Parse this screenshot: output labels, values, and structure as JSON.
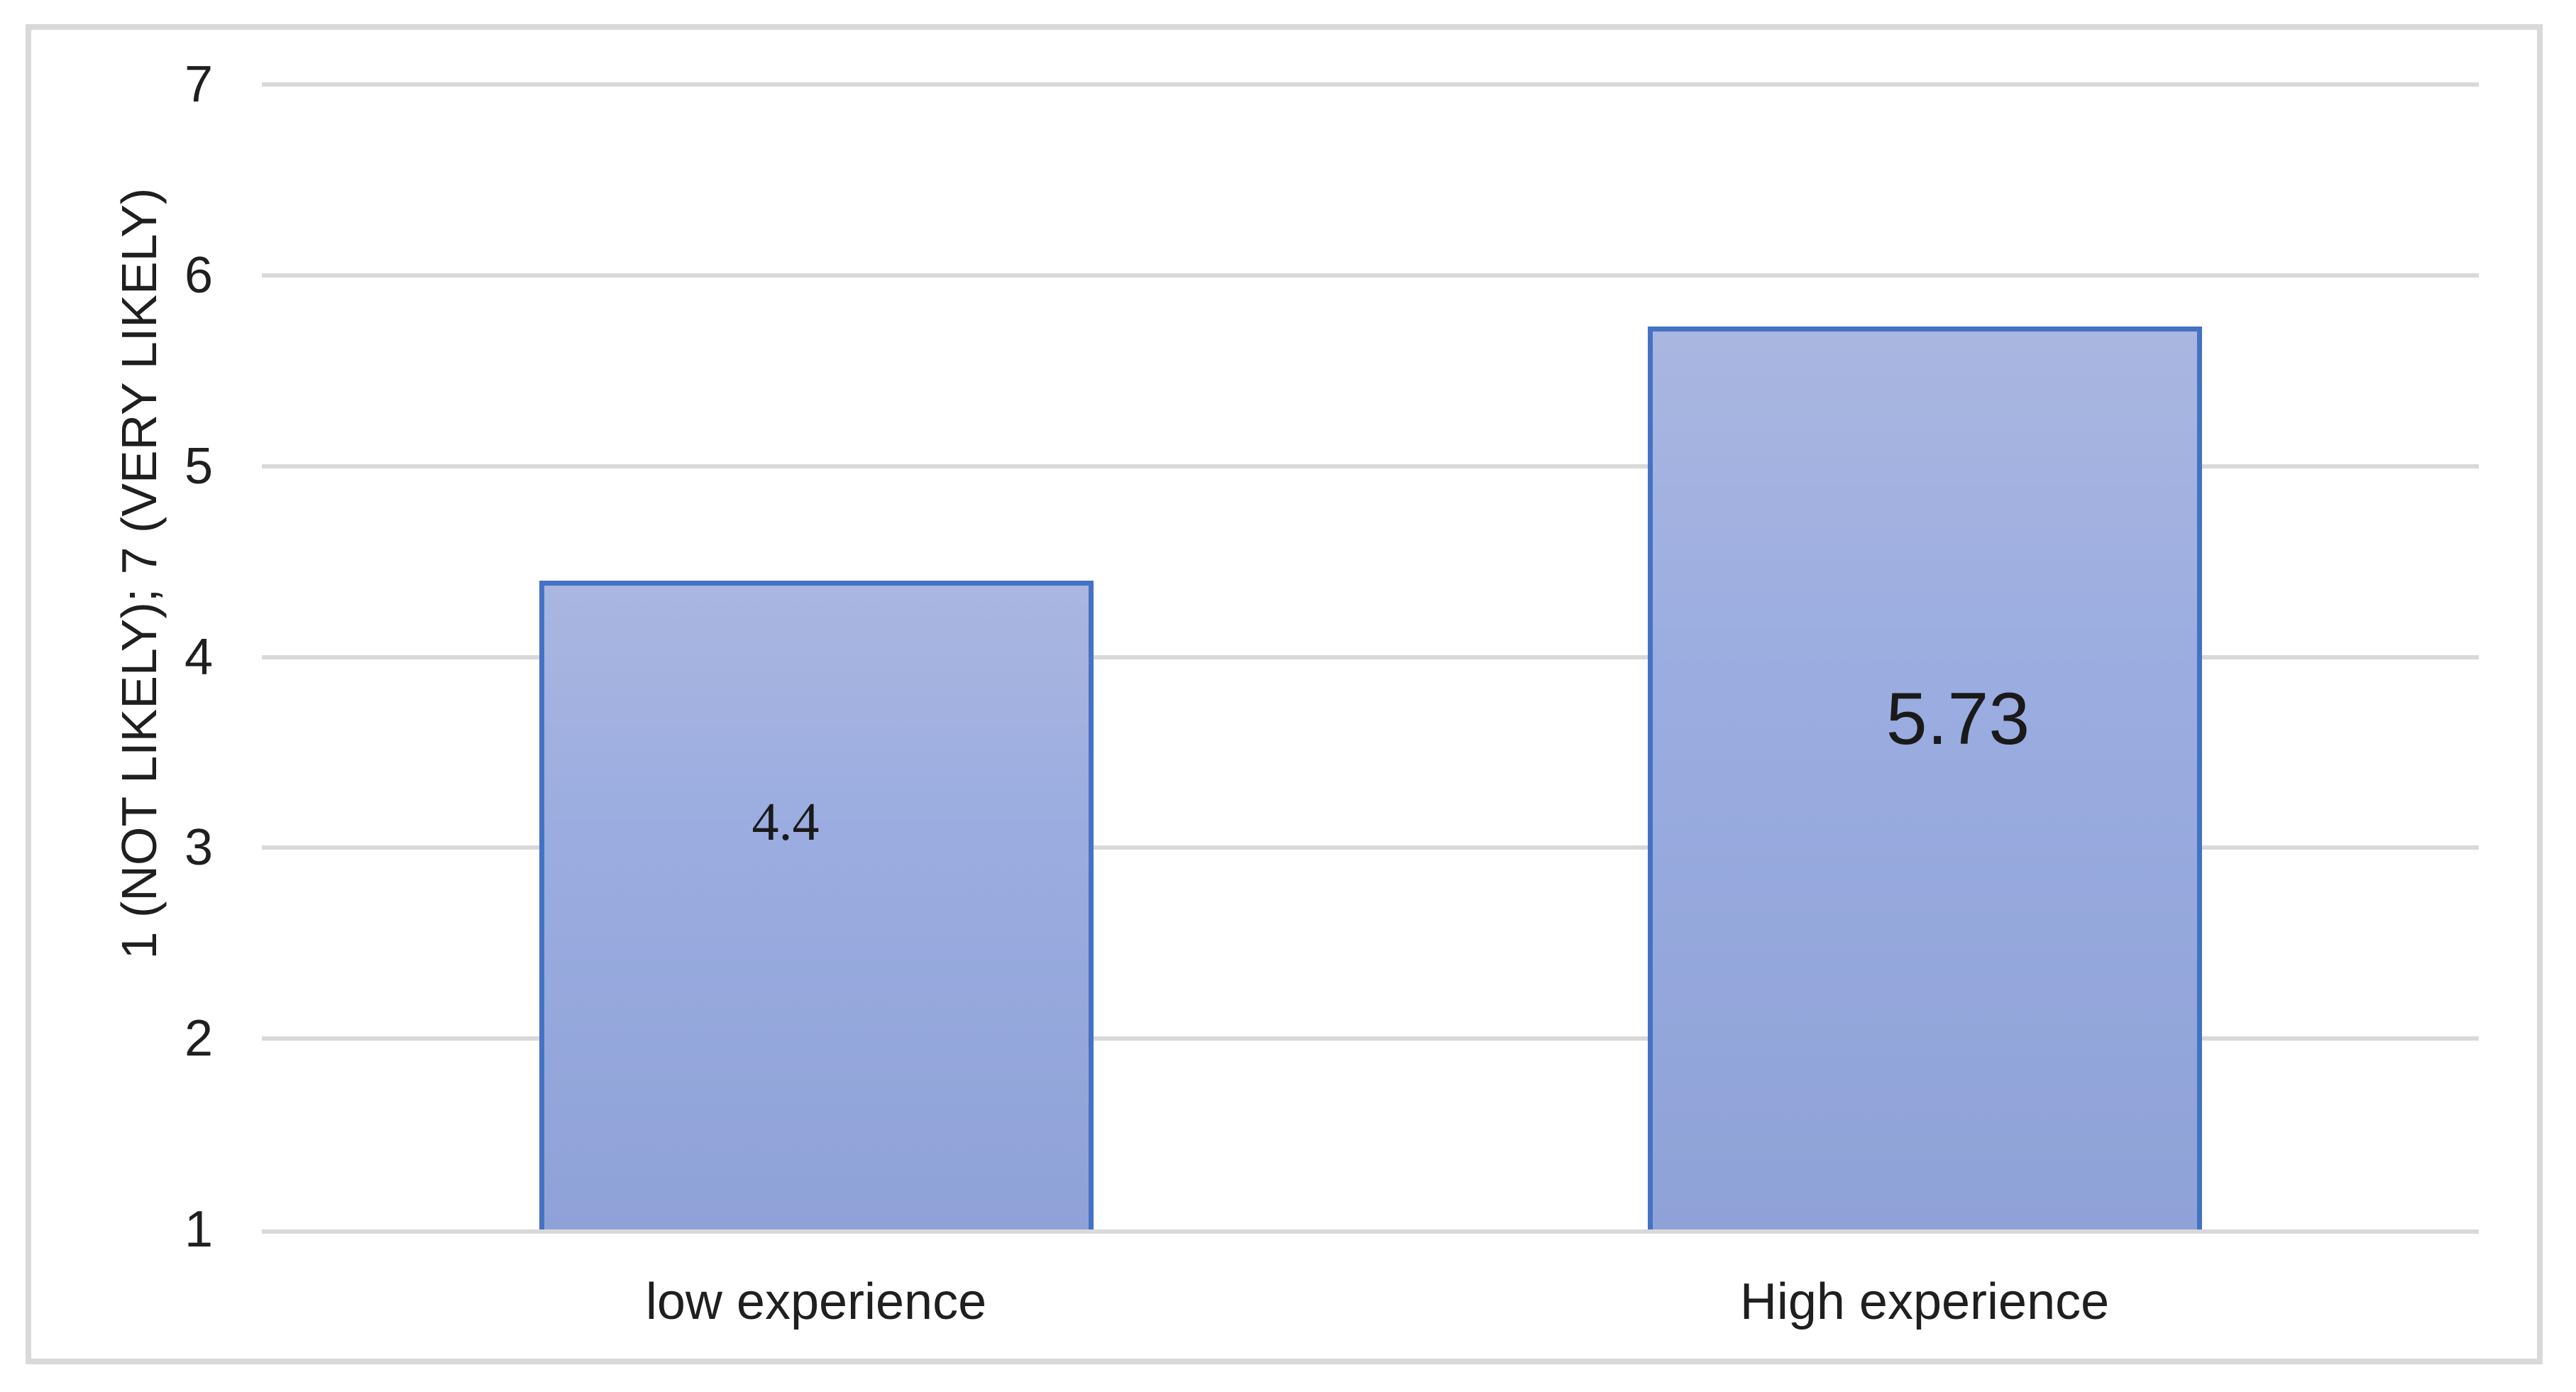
{
  "chart_data": {
    "type": "bar",
    "categories": [
      "low experience",
      "High experience"
    ],
    "values": [
      4.4,
      5.73
    ],
    "data_labels": [
      "4.4",
      "5.73"
    ],
    "title": "",
    "xlabel": "",
    "ylabel": "1 (NOT LIKELY); 7 (VERY LIKELY)",
    "ylim": [
      1,
      7
    ],
    "yticks": [
      7,
      6,
      5,
      4,
      3,
      2,
      1
    ],
    "grid": true,
    "legend": "none",
    "colors": {
      "bar_border": "#4472C4",
      "bar_fill_top": "#A9B6E0",
      "bar_fill_bottom": "#8FA2D7",
      "gridline": "#D9D9D9",
      "chart_border": "#D9D9D9",
      "text": "#1F1F1F",
      "background": "#FFFFFF"
    }
  }
}
